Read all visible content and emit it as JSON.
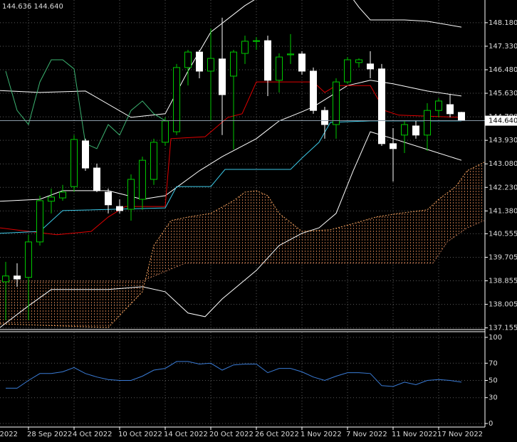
{
  "chart_data": [
    {
      "type": "candlestick",
      "info_text": "144.636 144.640",
      "ylim": [
        137.12,
        149.0
      ],
      "yticks": [
        {
          "value": 148.18,
          "label": "148.180"
        },
        {
          "value": 147.33,
          "label": "147.330"
        },
        {
          "value": 146.48,
          "label": "146.480"
        },
        {
          "value": 145.63,
          "label": "145.630"
        },
        {
          "value": 144.78,
          "label": "144.780"
        },
        {
          "value": 143.93,
          "label": "143.930"
        },
        {
          "value": 143.08,
          "label": "143.080"
        },
        {
          "value": 142.23,
          "label": "142.230"
        },
        {
          "value": 141.38,
          "label": "141.380"
        },
        {
          "value": 140.555,
          "label": "140.555"
        },
        {
          "value": 139.705,
          "label": "139.705"
        },
        {
          "value": 138.855,
          "label": "138.855"
        },
        {
          "value": 138.005,
          "label": "138.005"
        },
        {
          "value": 137.155,
          "label": "137.155"
        }
      ],
      "grid": true,
      "bull_color": "#00c800",
      "bear_color": "#ffffff",
      "open": [
        138.82,
        139.03,
        138.98,
        140.26,
        141.73,
        141.85,
        142.26,
        143.91,
        142.93,
        142.06,
        141.54,
        141.44,
        141.8,
        142.52,
        143.86,
        144.24,
        146.56,
        147.12,
        146.43,
        146.87,
        146.25,
        147.07,
        147.51,
        147.53,
        146.1,
        147.02,
        147.05,
        146.43,
        145.01,
        144.5,
        146.04,
        146.74,
        146.69,
        146.51,
        143.81,
        144.12,
        144.45,
        144.12,
        145.01,
        145.22,
        144.94
      ],
      "high": [
        139.54,
        139.49,
        140.52,
        141.93,
        142.19,
        142.32,
        144.12,
        143.99,
        143.09,
        142.19,
        141.8,
        142.7,
        143.34,
        143.99,
        144.76,
        146.69,
        147.2,
        147.2,
        147.97,
        148.36,
        147.2,
        147.71,
        147.66,
        147.71,
        147.07,
        147.77,
        147.15,
        146.56,
        145.14,
        146.17,
        146.94,
        146.89,
        147.15,
        146.69,
        144.37,
        144.63,
        144.63,
        145.27,
        145.45,
        145.58,
        144.96
      ],
      "low": [
        137.43,
        138.64,
        137.43,
        140.13,
        141.29,
        141.75,
        142.06,
        142.83,
        142.06,
        141.29,
        141.29,
        141.03,
        141.42,
        142.32,
        143.73,
        144.12,
        145.91,
        146.17,
        144.63,
        144.12,
        143.6,
        146.69,
        147.2,
        145.53,
        145.66,
        146.69,
        146.3,
        144.89,
        143.99,
        143.99,
        145.97,
        146.56,
        146.17,
        143.73,
        142.44,
        143.47,
        143.99,
        143.55,
        144.76,
        144.76,
        144.63
      ],
      "close": [
        139.03,
        138.92,
        140.26,
        141.75,
        141.88,
        142.06,
        143.96,
        142.93,
        142.11,
        141.6,
        141.39,
        142.52,
        143.21,
        143.86,
        144.63,
        146.56,
        147.12,
        146.43,
        146.89,
        145.58,
        147.12,
        147.51,
        147.53,
        146.1,
        146.94,
        147.05,
        146.43,
        145.01,
        144.5,
        146.04,
        146.84,
        146.84,
        146.51,
        143.81,
        143.63,
        144.5,
        144.12,
        145.01,
        145.35,
        144.89,
        144.64
      ],
      "last_price": {
        "value": 144.64,
        "label": "144.640"
      },
      "series": [
        {
          "color": "#ffffff",
          "x": [
            -0.5,
            3,
            7,
            11,
            14,
            16,
            18,
            21,
            23,
            30,
            31,
            32,
            35,
            37,
            40
          ],
          "values": [
            145.73,
            145.66,
            145.71,
            144.76,
            144.89,
            146.43,
            147.84,
            148.8,
            149.3,
            149.3,
            148.74,
            148.28,
            148.28,
            148.23,
            148.02
          ]
        },
        {
          "color": "#ffffff",
          "x": [
            -0.5,
            3,
            5,
            9,
            12,
            14,
            17,
            19,
            22,
            24,
            26,
            27,
            30,
            32,
            34,
            37,
            40
          ],
          "values": [
            141.73,
            141.8,
            142.11,
            142.11,
            141.8,
            141.93,
            142.83,
            143.34,
            143.99,
            144.63,
            144.96,
            145.14,
            145.91,
            146.1,
            145.97,
            145.71,
            145.53
          ]
        },
        {
          "color": "#ffffff",
          "x": [
            -0.5,
            2,
            4,
            9,
            12,
            14,
            16,
            17.5,
            19,
            22,
            24,
            26,
            27.5,
            29,
            30.5,
            32,
            34,
            37,
            40
          ],
          "values": [
            137.17,
            137.95,
            138.54,
            138.54,
            138.64,
            138.46,
            137.69,
            137.56,
            138.2,
            139.23,
            140.13,
            140.57,
            140.77,
            141.29,
            142.83,
            144.24,
            143.99,
            143.6,
            143.21
          ]
        },
        {
          "color": "#e00000",
          "x": [
            -0.5,
            2,
            4.5,
            7.5,
            9,
            10.5,
            14,
            14.5,
            17.5,
            19.5,
            20.75,
            22,
            27,
            28,
            29,
            32,
            33.25,
            34.5,
            40
          ],
          "values": [
            140.77,
            140.64,
            140.52,
            140.64,
            141.16,
            141.54,
            141.54,
            143.99,
            144.06,
            144.76,
            144.89,
            146.04,
            146.04,
            145.66,
            145.91,
            145.91,
            145.01,
            144.84,
            144.76
          ]
        },
        {
          "color": "#3cc8e6",
          "x": [
            -0.5,
            3,
            5,
            14,
            15,
            18,
            19.25,
            25,
            26,
            27.5,
            28.5,
            32,
            40
          ],
          "values": [
            140.57,
            140.64,
            141.39,
            141.49,
            142.26,
            142.26,
            142.88,
            142.88,
            143.29,
            143.86,
            144.58,
            144.63,
            144.63
          ]
        },
        {
          "color": "#3cb371",
          "x": [
            0,
            1,
            2,
            3,
            4,
            5,
            6,
            7,
            8,
            9,
            10,
            11,
            12,
            13,
            14
          ],
          "values": [
            146.43,
            145.01,
            144.5,
            146.04,
            146.84,
            146.84,
            146.51,
            143.81,
            143.63,
            144.5,
            144.12,
            145.01,
            145.35,
            144.89,
            144.64
          ]
        },
        {
          "color": "#f4a460",
          "dash": true,
          "cloud": true,
          "x": [
            -0.5,
            9,
            12,
            13,
            14.5,
            16,
            18,
            20,
            21,
            22,
            23,
            24,
            26,
            28.5,
            31,
            32.5,
            34.5,
            37,
            38,
            39.5,
            40.5,
            42
          ],
          "values": [
            137.3,
            137.17,
            138.46,
            140.13,
            141.03,
            141.16,
            141.29,
            141.75,
            142.06,
            142.11,
            141.93,
            141.29,
            140.64,
            140.7,
            140.98,
            141.16,
            141.29,
            141.42,
            141.8,
            142.26,
            142.83,
            143.14
          ]
        },
        {
          "color": "#b07050",
          "dash": true,
          "cloud": true,
          "x": [
            -0.5,
            12,
            15.75,
            37.5,
            38.75,
            40.5,
            42
          ],
          "values": [
            138.85,
            138.85,
            139.49,
            139.49,
            140.26,
            140.77,
            141.03
          ]
        }
      ]
    },
    {
      "type": "line",
      "categories": [
        null,
        null,
        "28 Sep 2022",
        null,
        null,
        null,
        "4 Oct 2022",
        null,
        null,
        null,
        "10 Oct 2022",
        null,
        null,
        null,
        "14 Oct 2022",
        null,
        null,
        null,
        "20 Oct 2022",
        null,
        null,
        null,
        "26 Oct 2022",
        null,
        null,
        null,
        "1 Nov 2022",
        null,
        null,
        null,
        "7 Nov 2022",
        null,
        null,
        null,
        "11 Nov 2022",
        null,
        null,
        null,
        "17 Nov 2022",
        null,
        null
      ],
      "x_cut_label": "2022",
      "ylim": [
        0,
        100
      ],
      "yticks": [
        0,
        30,
        50,
        70,
        100
      ],
      "grid": true,
      "color": "#3a7bd5",
      "values": [
        41,
        41,
        50,
        58,
        58,
        60,
        65,
        58,
        54,
        51,
        50,
        50,
        55,
        62,
        64,
        72,
        72,
        69,
        70,
        62,
        68,
        69,
        69,
        59,
        64,
        64,
        60,
        54,
        50,
        55,
        59,
        59,
        58,
        44,
        43,
        48,
        45,
        50,
        51,
        50,
        48
      ]
    }
  ]
}
